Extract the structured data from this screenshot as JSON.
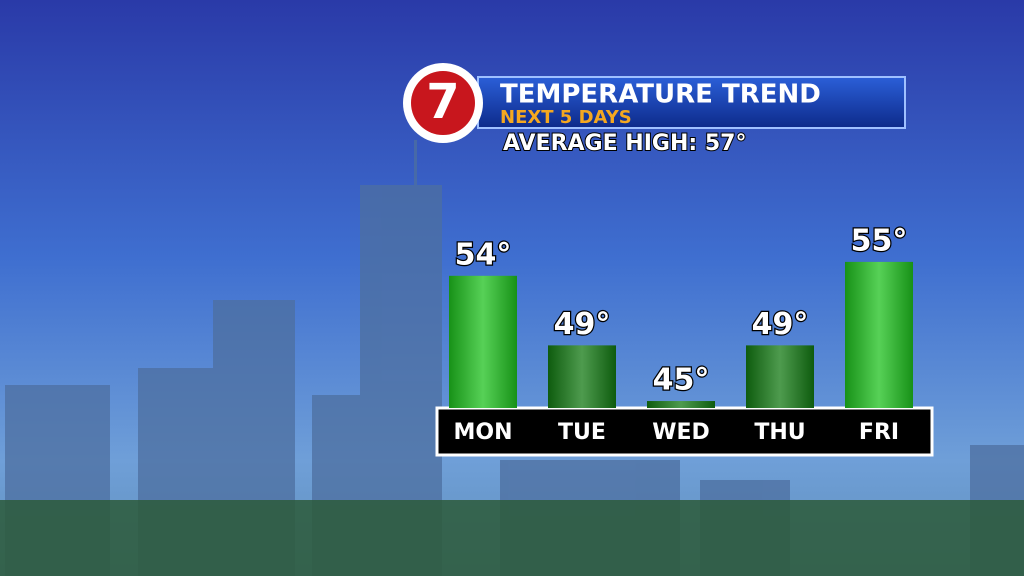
{
  "logo": "7",
  "chart_data": {
    "type": "bar",
    "title": "TEMPERATURE TREND",
    "subtitle": "NEXT 5 DAYS",
    "annotation": "AVERAGE HIGH:  57°",
    "categories": [
      "MON",
      "TUE",
      "WED",
      "THU",
      "FRI"
    ],
    "values": [
      54,
      49,
      45,
      49,
      55
    ],
    "value_labels": [
      "54°",
      "49°",
      "45°",
      "49°",
      "55°"
    ],
    "colors": [
      "#1fc21f",
      "#137a13",
      "#137a13",
      "#137a13",
      "#1fc21f"
    ],
    "ylim": [
      44.5,
      56
    ]
  }
}
